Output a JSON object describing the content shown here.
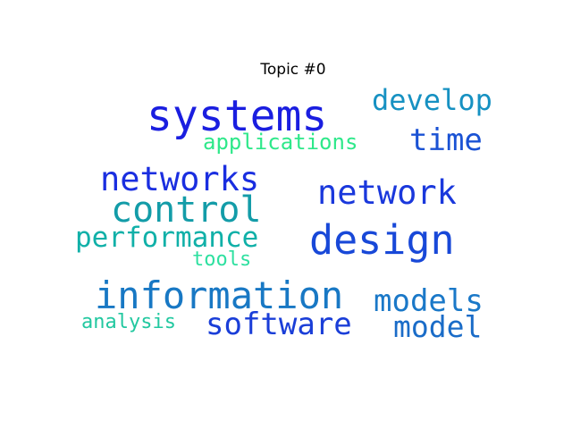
{
  "figure": {
    "title": "Topic #0"
  },
  "words": [
    {
      "key": "systems",
      "text": "systems",
      "color": "#1a1ee0"
    },
    {
      "key": "develop",
      "text": "develop",
      "color": "#1691c2"
    },
    {
      "key": "applications",
      "text": "applications",
      "color": "#2ee88a"
    },
    {
      "key": "time",
      "text": "time",
      "color": "#1a52d4"
    },
    {
      "key": "networks",
      "text": "networks",
      "color": "#1a2ee0"
    },
    {
      "key": "network",
      "text": "network",
      "color": "#1a38dc"
    },
    {
      "key": "control",
      "text": "control",
      "color": "#139ca8"
    },
    {
      "key": "design",
      "text": "design",
      "color": "#1848d8"
    },
    {
      "key": "performance",
      "text": "performance",
      "color": "#10b0a8"
    },
    {
      "key": "tools",
      "text": "tools",
      "color": "#2ee0a0"
    },
    {
      "key": "information",
      "text": "information",
      "color": "#1878c4"
    },
    {
      "key": "models",
      "text": "models",
      "color": "#1a78c8"
    },
    {
      "key": "analysis",
      "text": "analysis",
      "color": "#22c8a0"
    },
    {
      "key": "software",
      "text": "software",
      "color": "#1a3ed8"
    },
    {
      "key": "model",
      "text": "model",
      "color": "#1a6cc8"
    }
  ]
}
